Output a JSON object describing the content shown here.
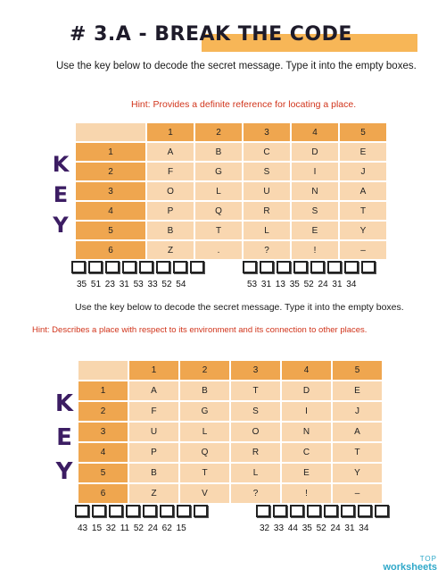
{
  "title": "# 3.A - BREAK THE CODE",
  "instruction_top": "Use the key below to decode the secret message.  Type it into the empty boxes.",
  "key_word": [
    "K",
    "E",
    "Y"
  ],
  "sections": [
    {
      "hint": "Hint: Provides a definite reference for locating a place.",
      "col_headers": [
        "1",
        "2",
        "3",
        "4",
        "5"
      ],
      "rows": [
        {
          "label": "1",
          "cells": [
            "A",
            "B",
            "C",
            "D",
            "E"
          ]
        },
        {
          "label": "2",
          "cells": [
            "F",
            "G",
            "S",
            "I",
            "J"
          ]
        },
        {
          "label": "3",
          "cells": [
            "O",
            "L",
            "U",
            "N",
            "A"
          ]
        },
        {
          "label": "4",
          "cells": [
            "P",
            "Q",
            "R",
            "S",
            "T"
          ]
        },
        {
          "label": "5",
          "cells": [
            "B",
            "T",
            "L",
            "E",
            "Y"
          ]
        },
        {
          "label": "6",
          "cells": [
            "Z",
            ".",
            "?",
            "!",
            "–"
          ]
        }
      ],
      "codes_left": "35  51  23  31  53  33  52  54",
      "codes_right": "53  31  13  35  52  24  31  34"
    },
    {
      "instruction": "Use the key below to decode the secret message.  Type it into the empty boxes.",
      "hint": "Hint:  Describes a place with respect to its environment and its connection to other places.",
      "col_headers": [
        "1",
        "2",
        "3",
        "4",
        "5"
      ],
      "rows": [
        {
          "label": "1",
          "cells": [
            "A",
            "B",
            "T",
            "D",
            "E"
          ]
        },
        {
          "label": "2",
          "cells": [
            "F",
            "G",
            "S",
            "I",
            "J"
          ]
        },
        {
          "label": "3",
          "cells": [
            "U",
            "L",
            "O",
            "N",
            "A"
          ]
        },
        {
          "label": "4",
          "cells": [
            "P",
            "Q",
            "R",
            "C",
            "T"
          ]
        },
        {
          "label": "5",
          "cells": [
            "B",
            "T",
            "L",
            "E",
            "Y"
          ]
        },
        {
          "label": "6",
          "cells": [
            "Z",
            "V",
            "?",
            "!",
            "–"
          ]
        }
      ],
      "codes_left": "43  15  32  11  52  24  62  15",
      "codes_right": "32  33  44  35  52  24  31  34"
    }
  ],
  "logo": {
    "top": "TOP",
    "main": "worksheets"
  }
}
